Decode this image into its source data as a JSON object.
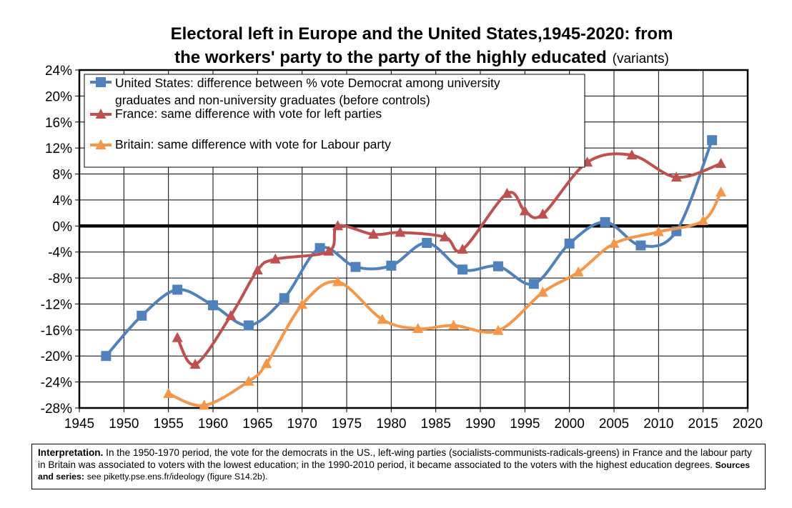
{
  "title_line1": "Electoral left in Europe and the United States,1945-2020: from",
  "title_line2": "the workers' party to the party of the highly educated",
  "title_variant": "(variants)",
  "note": {
    "label": "Interpretation.",
    "text": "In the 1950-1970 period, the vote for the democrats in the US., left-wing parties (socialists-communists-radicals-greens) in France and the labour party in Britain was associated to voters with the lowest education; in the 1990-2010 period, it became associated to the voters with the highest education degrees.",
    "sources_label": "Sources and series:",
    "sources_text": "see piketty.pse.ens.fr/ideology (figure S14.2b)."
  },
  "chart_data": {
    "type": "line",
    "title": "Electoral left in Europe and the United States,1945-2020: from the workers' party to the party of the highly educated (variants)",
    "xlabel": "",
    "ylabel": "",
    "xlim": [
      1945,
      2020
    ],
    "ylim": [
      -28,
      24
    ],
    "x_ticks": [
      1945,
      1950,
      1955,
      1960,
      1965,
      1970,
      1975,
      1980,
      1985,
      1990,
      1995,
      2000,
      2005,
      2010,
      2015,
      2020
    ],
    "y_ticks": [
      -28,
      -24,
      -20,
      -16,
      -12,
      -8,
      -4,
      0,
      4,
      8,
      12,
      16,
      20,
      24
    ],
    "y_tick_labels": [
      "-28%",
      "-24%",
      "-20%",
      "-16%",
      "-12%",
      "-8%",
      "-4%",
      "0%",
      "4%",
      "8%",
      "12%",
      "16%",
      "20%",
      "24%"
    ],
    "grid": true,
    "legend_position": "top-left",
    "series": [
      {
        "name": "United States: difference between % vote Democrat among university graduates and non-university graduates (before controls)",
        "color": "#4f81bd",
        "marker": "square",
        "x": [
          1948,
          1952,
          1956,
          1960,
          1964,
          1968,
          1972,
          1976,
          1980,
          1984,
          1988,
          1992,
          1996,
          2000,
          2004,
          2008,
          2012,
          2016
        ],
        "y": [
          -20,
          -13.8,
          -9.8,
          -12.2,
          -15.3,
          -11.1,
          -3.4,
          -6.3,
          -6.1,
          -2.6,
          -6.7,
          -6.2,
          -8.9,
          -2.7,
          0.6,
          -3,
          -0.8,
          13.2
        ]
      },
      {
        "name": "France: same difference with vote for left parties",
        "color": "#c0504d",
        "marker": "triangle",
        "x": [
          1956,
          1958,
          1962,
          1965,
          1967,
          1973,
          1974,
          1978,
          1981,
          1986,
          1988,
          1993,
          1995,
          1997,
          2002,
          2007,
          2012,
          2017
        ],
        "y": [
          -17.2,
          -21.3,
          -13.8,
          -6.8,
          -5.1,
          -3.9,
          0,
          -1.3,
          -1,
          -1.7,
          -3.6,
          5,
          2.3,
          1.8,
          9.8,
          10.9,
          7.5,
          9.6
        ]
      },
      {
        "name": "Britain: same difference with vote for Labour party",
        "color": "#f79646",
        "marker": "triangle",
        "x": [
          1955,
          1959,
          1964,
          1966,
          1970,
          1974,
          1979,
          1983,
          1987,
          1992,
          1997,
          2001,
          2005,
          2010,
          2015,
          2017
        ],
        "y": [
          -25.8,
          -27.6,
          -23.9,
          -21.2,
          -12.1,
          -8.6,
          -14.4,
          -15.8,
          -15.3,
          -16.1,
          -10.2,
          -7.1,
          -2.7,
          -0.9,
          0.8,
          5.2
        ]
      }
    ]
  }
}
